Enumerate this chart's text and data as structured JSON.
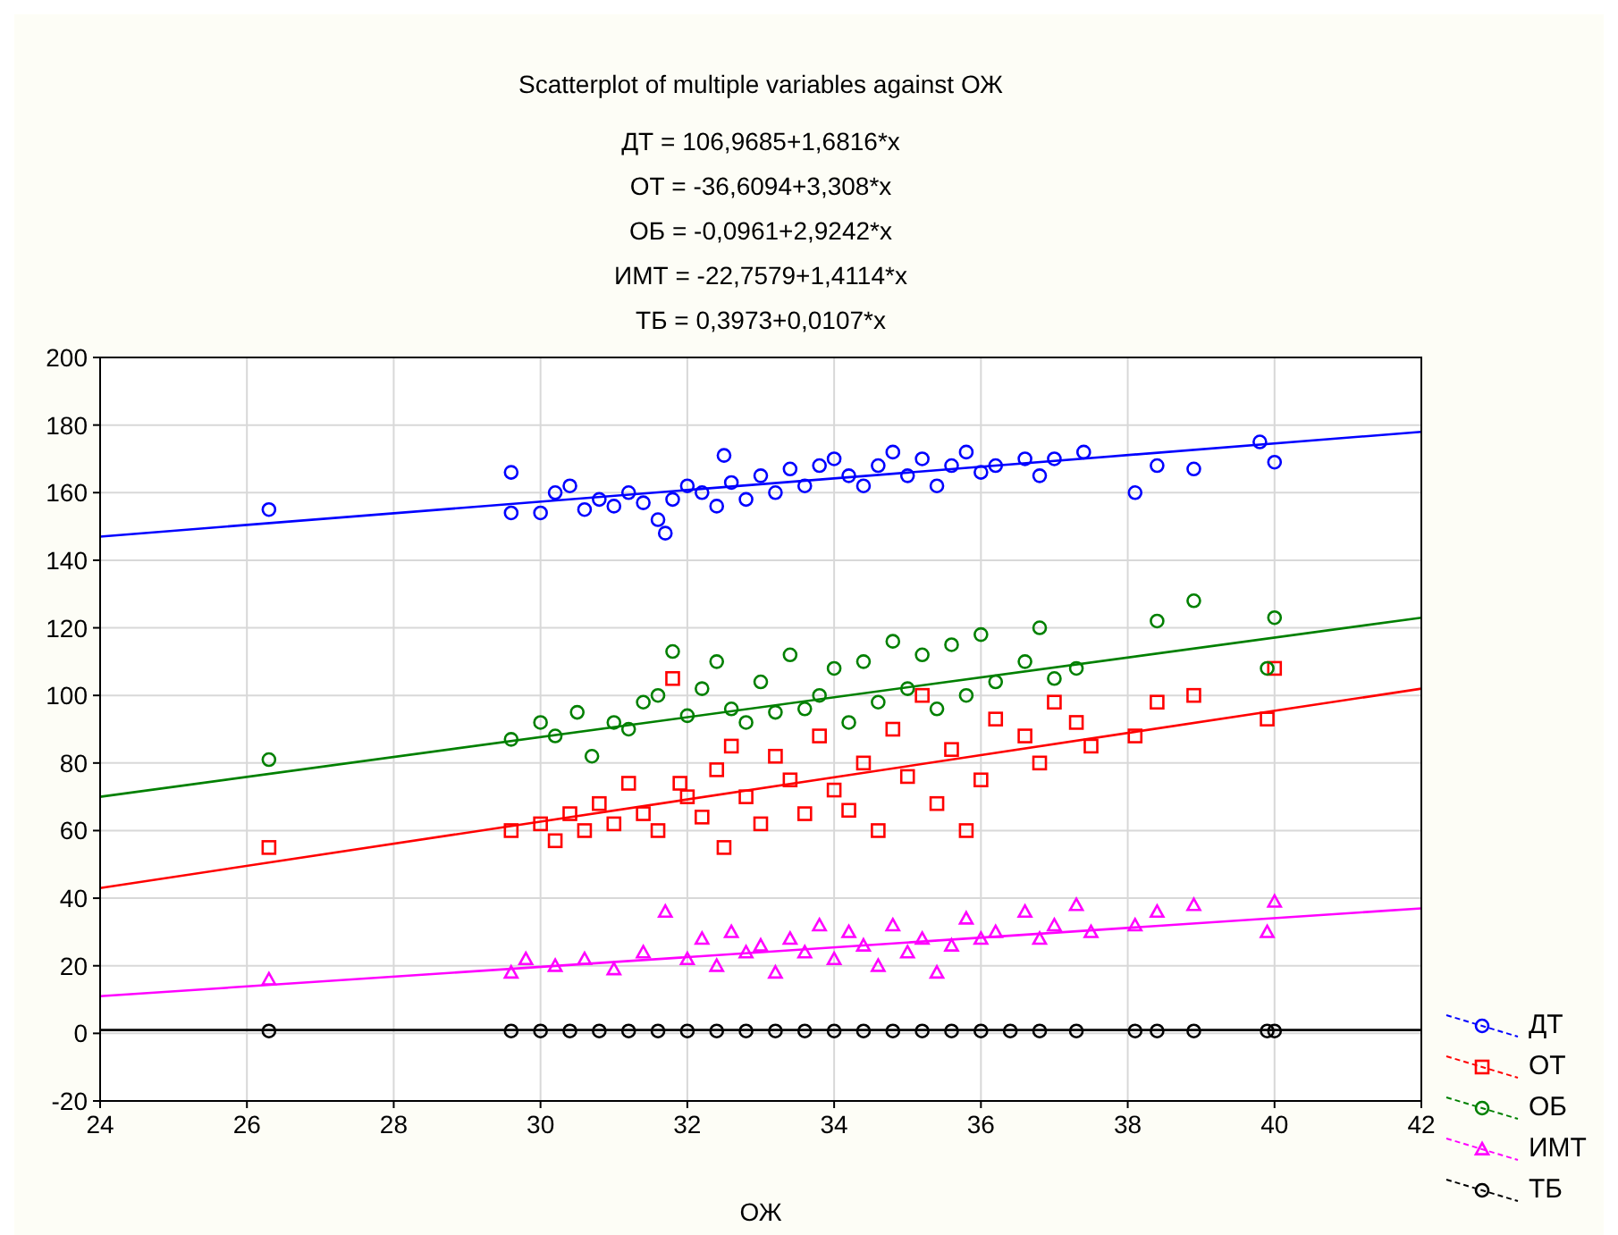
{
  "chart_data": {
    "type": "scatter",
    "title": "Scatterplot of multiple variables against ОЖ",
    "annotations": [
      "ДТ = 106,9685+1,6816*x",
      "ОТ = -36,6094+3,308*x",
      "ОБ = -0,0961+2,9242*x",
      "ИМТ = -22,7579+1,4114*x",
      "ТБ = 0,3973+0,0107*x"
    ],
    "xlabel": "ОЖ",
    "xlim": [
      24,
      42
    ],
    "xticks": [
      24,
      26,
      28,
      30,
      32,
      34,
      36,
      38,
      40,
      42
    ],
    "ylim": [
      -20,
      200
    ],
    "yticks": [
      -20,
      0,
      20,
      40,
      60,
      80,
      100,
      120,
      140,
      160,
      180,
      200
    ],
    "grid": true,
    "legend": "bottom right",
    "series": [
      {
        "name": "ДТ",
        "color": "#0000ff",
        "marker": "circle",
        "x": [
          26.3,
          29.6,
          29.6,
          30.0,
          30.2,
          30.4,
          30.6,
          30.8,
          31.0,
          31.2,
          31.4,
          31.6,
          31.7,
          31.8,
          32.0,
          32.2,
          32.4,
          32.5,
          32.6,
          32.8,
          33.0,
          33.2,
          33.4,
          33.6,
          33.8,
          34.0,
          34.2,
          34.4,
          34.6,
          34.8,
          35.0,
          35.2,
          35.4,
          35.6,
          35.8,
          36.0,
          36.2,
          36.6,
          36.8,
          37.0,
          37.4,
          38.1,
          38.4,
          38.9,
          39.8,
          40.0
        ],
        "values": [
          155,
          166,
          154,
          154,
          160,
          162,
          155,
          158,
          156,
          160,
          157,
          152,
          148,
          158,
          162,
          160,
          156,
          171,
          163,
          158,
          165,
          160,
          167,
          162,
          168,
          170,
          165,
          162,
          168,
          172,
          165,
          170,
          162,
          168,
          172,
          166,
          168,
          170,
          165,
          170,
          172,
          160,
          168,
          167,
          175,
          169
        ]
      },
      {
        "name": "ОТ",
        "color": "#ff0000",
        "marker": "square",
        "x": [
          26.3,
          29.6,
          30.0,
          30.2,
          30.4,
          30.6,
          30.8,
          31.0,
          31.2,
          31.4,
          31.6,
          31.8,
          31.9,
          32.0,
          32.2,
          32.4,
          32.5,
          32.6,
          32.8,
          33.0,
          33.2,
          33.4,
          33.6,
          33.8,
          34.0,
          34.2,
          34.4,
          34.6,
          34.8,
          35.0,
          35.2,
          35.4,
          35.6,
          35.8,
          36.0,
          36.2,
          36.6,
          36.8,
          37.0,
          37.3,
          37.5,
          38.1,
          38.4,
          38.9,
          39.9,
          40.0
        ],
        "values": [
          55,
          60,
          62,
          57,
          65,
          60,
          68,
          62,
          74,
          65,
          60,
          105,
          74,
          70,
          64,
          78,
          55,
          85,
          70,
          62,
          82,
          75,
          65,
          88,
          72,
          66,
          80,
          60,
          90,
          76,
          100,
          68,
          84,
          60,
          75,
          93,
          88,
          80,
          98,
          92,
          85,
          88,
          98,
          100,
          93,
          108
        ]
      },
      {
        "name": "ОБ",
        "color": "#008000",
        "marker": "circle",
        "x": [
          26.3,
          29.6,
          30.0,
          30.2,
          30.5,
          30.7,
          31.0,
          31.2,
          31.4,
          31.6,
          31.8,
          32.0,
          32.2,
          32.4,
          32.6,
          32.8,
          33.0,
          33.2,
          33.4,
          33.6,
          33.8,
          34.0,
          34.2,
          34.4,
          34.6,
          34.8,
          35.0,
          35.2,
          35.4,
          35.6,
          35.8,
          36.0,
          36.2,
          36.6,
          36.8,
          37.0,
          37.3,
          38.4,
          38.9,
          39.9,
          40.0
        ],
        "values": [
          81,
          87,
          92,
          88,
          95,
          82,
          92,
          90,
          98,
          100,
          113,
          94,
          102,
          110,
          96,
          92,
          104,
          95,
          112,
          96,
          100,
          108,
          92,
          110,
          98,
          116,
          102,
          112,
          96,
          115,
          100,
          118,
          104,
          110,
          120,
          105,
          108,
          122,
          128,
          108,
          123
        ]
      },
      {
        "name": "ИМТ",
        "color": "#ff00ff",
        "marker": "triangle",
        "x": [
          26.3,
          29.6,
          29.8,
          30.2,
          30.6,
          31.0,
          31.4,
          31.7,
          32.0,
          32.2,
          32.4,
          32.6,
          32.8,
          33.0,
          33.2,
          33.4,
          33.6,
          33.8,
          34.0,
          34.2,
          34.4,
          34.6,
          34.8,
          35.0,
          35.2,
          35.4,
          35.6,
          35.8,
          36.0,
          36.2,
          36.6,
          36.8,
          37.0,
          37.3,
          37.5,
          38.1,
          38.4,
          38.9,
          39.9,
          40.0
        ],
        "values": [
          16,
          18,
          22,
          20,
          22,
          19,
          24,
          36,
          22,
          28,
          20,
          30,
          24,
          26,
          18,
          28,
          24,
          32,
          22,
          30,
          26,
          20,
          32,
          24,
          28,
          18,
          26,
          34,
          28,
          30,
          36,
          28,
          32,
          38,
          30,
          32,
          36,
          38,
          30,
          39
        ]
      },
      {
        "name": "ТБ",
        "color": "#000000",
        "marker": "circle",
        "x": [
          26.3,
          29.6,
          30.0,
          30.4,
          30.8,
          31.2,
          31.6,
          32.0,
          32.4,
          32.8,
          33.2,
          33.6,
          34.0,
          34.4,
          34.8,
          35.2,
          35.6,
          36.0,
          36.4,
          36.8,
          37.3,
          38.1,
          38.4,
          38.9,
          39.9,
          40.0
        ],
        "values": [
          0.7,
          0.7,
          0.7,
          0.7,
          0.7,
          0.7,
          0.7,
          0.7,
          0.7,
          0.7,
          0.7,
          0.7,
          0.7,
          0.7,
          0.7,
          0.7,
          0.7,
          0.7,
          0.7,
          0.7,
          0.7,
          0.7,
          0.7,
          0.7,
          0.7,
          0.7
        ]
      },
      {
        "type": "line",
        "color": "#0000ff",
        "marker": "none",
        "x": [
          24,
          42
        ],
        "values": [
          147,
          178
        ]
      },
      {
        "type": "line",
        "color": "#ff0000",
        "marker": "none",
        "x": [
          24,
          42
        ],
        "values": [
          43,
          102
        ]
      },
      {
        "type": "line",
        "color": "#008000",
        "marker": "none",
        "x": [
          24,
          42
        ],
        "values": [
          70,
          123
        ]
      },
      {
        "type": "line",
        "color": "#ff00ff",
        "marker": "none",
        "x": [
          24,
          42
        ],
        "values": [
          11,
          37
        ]
      },
      {
        "type": "line",
        "color": "#000000",
        "marker": "none",
        "x": [
          24,
          42
        ],
        "values": [
          1,
          1
        ]
      }
    ]
  }
}
